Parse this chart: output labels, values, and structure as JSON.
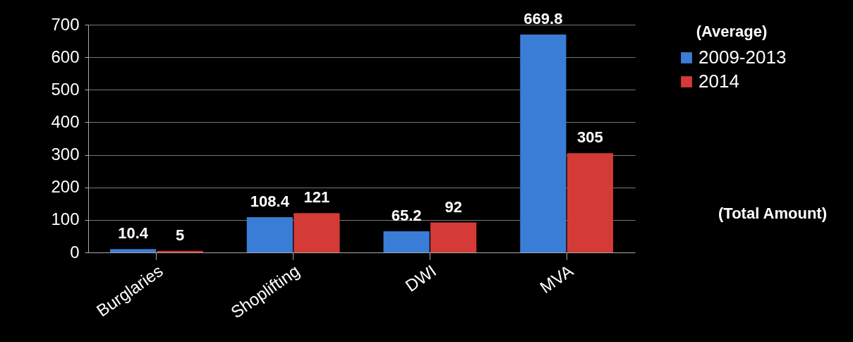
{
  "chart_data": {
    "type": "bar",
    "categories": [
      "Burglaries",
      "Shoplifting",
      "DWI",
      "MVA"
    ],
    "series": [
      {
        "name": "2009-2013",
        "color": "#3a7dd6",
        "values": [
          10.4,
          108.4,
          65.2,
          669.8
        ]
      },
      {
        "name": "2014",
        "color": "#d43a36",
        "values": [
          5,
          121,
          92,
          305
        ]
      }
    ],
    "ylim": [
      0,
      700
    ],
    "yticks": [
      0,
      100,
      200,
      300,
      400,
      500,
      600,
      700
    ],
    "grid": "y",
    "legend": "right",
    "legend_title": "(Average)",
    "annotations": [
      "(Total Amount)"
    ],
    "data_labels": true
  }
}
